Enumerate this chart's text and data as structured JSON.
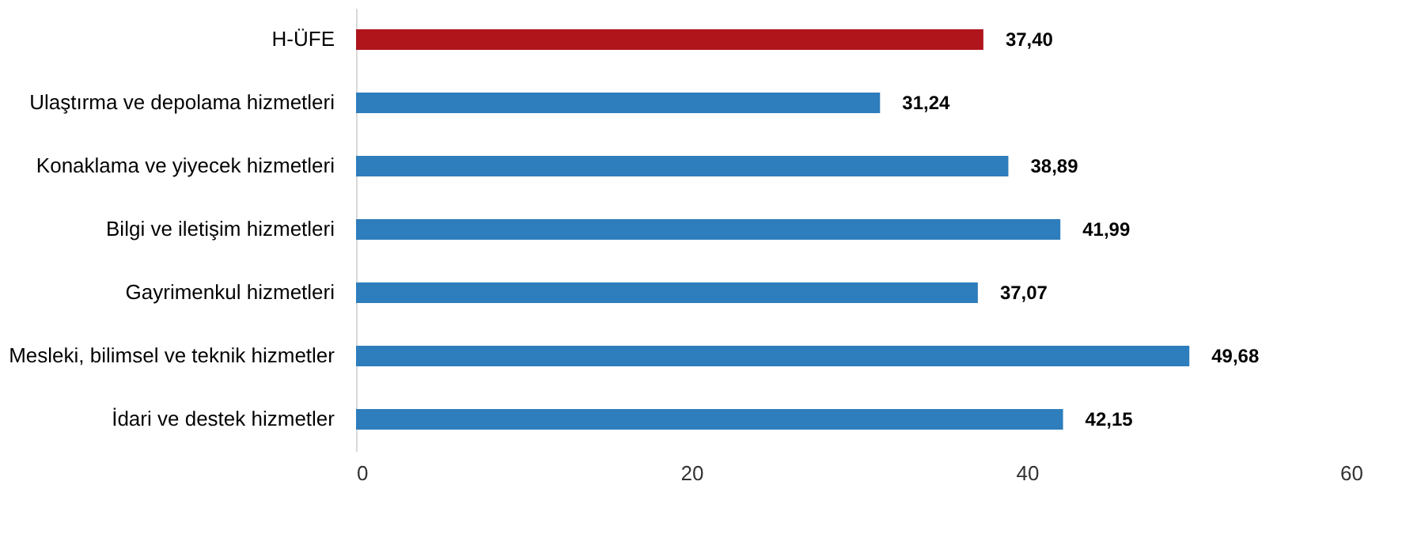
{
  "chart_data": {
    "type": "bar",
    "orientation": "horizontal",
    "categories": [
      "H-ÜFE",
      "Ulaştırma ve depolama hizmetleri",
      "Konaklama ve yiyecek hizmetleri",
      "Bilgi ve iletişim hizmetleri",
      "Gayrimenkul hizmetleri",
      "Mesleki, bilimsel ve teknik hizmetler",
      "İdari ve destek hizmetler"
    ],
    "values": [
      37.4,
      31.24,
      38.89,
      41.99,
      37.07,
      49.68,
      42.15
    ],
    "value_labels": [
      "37,40",
      "31,24",
      "38,89",
      "41,99",
      "37,07",
      "49,68",
      "42,15"
    ],
    "colors": [
      "#b0151c",
      "#2e7dbc",
      "#2e7dbc",
      "#2e7dbc",
      "#2e7dbc",
      "#2e7dbc",
      "#2e7dbc"
    ],
    "xlim": [
      0,
      60
    ],
    "xticks": [
      0,
      20,
      40,
      60
    ],
    "grid": false
  }
}
